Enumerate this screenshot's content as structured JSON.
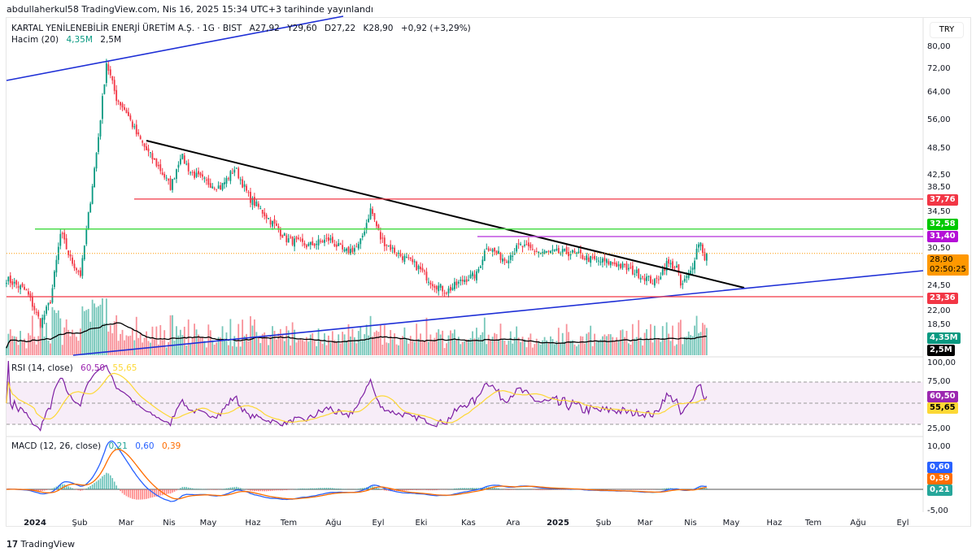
{
  "published": "abdullaherkul58 TradingView.com, Nis 16, 2025 15:34 UTC+3 tarihinde yayınlandı",
  "symbol": {
    "name": "KARTAL YENİLENEBİLİR ENERJİ ÜRETİM A.Ş. · 1G · BIST",
    "open": "A27,92",
    "high": "Y29,60",
    "low": "D27,22",
    "close": "K28,90",
    "change": "+0,92 (+3,29%)"
  },
  "volume_legend": {
    "label": "Hacim (20)",
    "value": "4,35M",
    "ma": "2,5M"
  },
  "rsi_legend": {
    "label": "RSI (14, close)",
    "rsi": "60,50",
    "ma": "55,65"
  },
  "macd_legend": {
    "label": "MACD (12, 26, close)",
    "hist": "0,21",
    "macd": "0,60",
    "signal": "0,39"
  },
  "currency": "TRY",
  "price_axis": [
    "80,00",
    "72,00",
    "64,00",
    "56,00",
    "48,50",
    "42,50",
    "38,50",
    "34,50",
    "30,50",
    "24,50",
    "22,00",
    "18,50",
    "100,00"
  ],
  "rsi_axis": [
    "75,00",
    "25,00"
  ],
  "macd_axis": [
    "10,00",
    "-5,00"
  ],
  "tags": {
    "r1": {
      "text": "37,76",
      "color": "#f23645"
    },
    "g1": {
      "text": "32,58",
      "color": "#00c800"
    },
    "p1": {
      "text": "31,40",
      "color": "#b40fd6"
    },
    "last": {
      "text": "28,90",
      "color": "#ff9800"
    },
    "countdown": {
      "text": "02:50:25"
    },
    "s1": {
      "text": "23,36",
      "color": "#f23645"
    },
    "vol": {
      "text": "4,35M",
      "color": "#089981"
    },
    "volma": {
      "text": "2,5M",
      "color": "#000000"
    },
    "rsi": {
      "text": "60,50",
      "color": "#9c27b0"
    },
    "rsima": {
      "text": "55,65",
      "color": "#fdd835"
    },
    "macd": {
      "text": "0,60",
      "color": "#2962ff"
    },
    "signal": {
      "text": "0,39",
      "color": "#ff6d00"
    },
    "hist": {
      "text": "0,21",
      "color": "#26a69a"
    }
  },
  "time_axis": [
    "2024",
    "Şub",
    "Mar",
    "Nis",
    "May",
    "Haz",
    "Tem",
    "Ağu",
    "Eyl",
    "Eki",
    "Kas",
    "Ara",
    "2025",
    "Şub",
    "Mar",
    "Nis",
    "May",
    "Haz",
    "Tem",
    "Ağu",
    "Eyl"
  ],
  "brand": "TradingView",
  "chart_data": {
    "type": "candlestick",
    "scale": "log",
    "ylim": [
      17,
      84
    ],
    "series_closes_approx": [
      [
        "2023-12-12",
        25.5
      ],
      [
        "2023-12-26",
        24
      ],
      [
        "2024-01-05",
        20.5
      ],
      [
        "2024-01-12",
        23
      ],
      [
        "2024-01-19",
        32
      ],
      [
        "2024-01-26",
        28
      ],
      [
        "2024-02-02",
        26
      ],
      [
        "2024-02-09",
        38
      ],
      [
        "2024-02-14",
        50
      ],
      [
        "2024-02-20",
        74
      ],
      [
        "2024-02-27",
        62
      ],
      [
        "2024-03-05",
        58
      ],
      [
        "2024-03-12",
        52
      ],
      [
        "2024-03-19",
        48
      ],
      [
        "2024-03-28",
        44
      ],
      [
        "2024-04-05",
        40
      ],
      [
        "2024-04-12",
        47
      ],
      [
        "2024-04-19",
        43
      ],
      [
        "2024-04-30",
        41
      ],
      [
        "2024-05-10",
        40
      ],
      [
        "2024-05-20",
        44
      ],
      [
        "2024-05-30",
        38
      ],
      [
        "2024-06-10",
        35
      ],
      [
        "2024-06-25",
        31
      ],
      [
        "2024-07-10",
        30
      ],
      [
        "2024-07-25",
        31
      ],
      [
        "2024-08-05",
        29
      ],
      [
        "2024-08-15",
        30
      ],
      [
        "2024-08-23",
        36
      ],
      [
        "2024-08-30",
        31
      ],
      [
        "2024-09-10",
        29
      ],
      [
        "2024-09-25",
        27
      ],
      [
        "2024-10-05",
        25
      ],
      [
        "2024-10-15",
        24
      ],
      [
        "2024-10-28",
        25.5
      ],
      [
        "2024-11-05",
        26
      ],
      [
        "2024-11-12",
        30
      ],
      [
        "2024-11-25",
        28
      ],
      [
        "2024-12-05",
        30
      ],
      [
        "2024-12-20",
        29
      ],
      [
        "2025-01-10",
        29
      ],
      [
        "2025-01-25",
        28
      ],
      [
        "2025-02-10",
        27.5
      ],
      [
        "2025-02-28",
        26
      ],
      [
        "2025-03-10",
        25
      ],
      [
        "2025-03-18",
        27.5
      ],
      [
        "2025-03-25",
        27
      ],
      [
        "2025-03-28",
        24.5
      ],
      [
        "2025-04-04",
        26.5
      ],
      [
        "2025-04-10",
        31
      ],
      [
        "2025-04-14",
        28
      ],
      [
        "2025-04-16",
        28.9
      ]
    ],
    "levels": [
      37.76,
      32.58,
      31.4,
      23.36
    ],
    "last_price": 28.9
  }
}
